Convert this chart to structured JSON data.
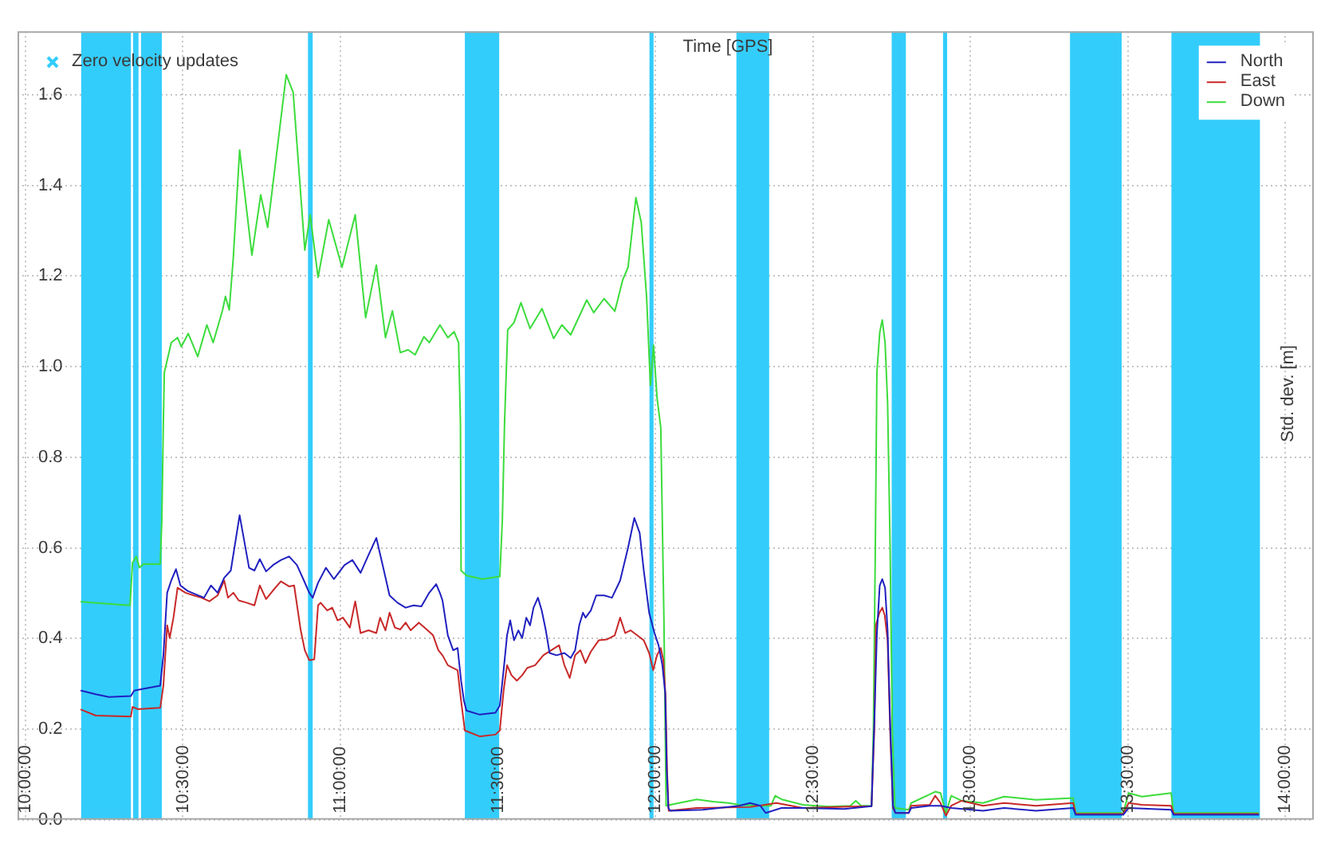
{
  "chart_data": {
    "type": "line",
    "xlabel": "Time [GPS]",
    "ylabel": "Std. dev. [m]",
    "series": [
      {
        "name": "North",
        "color": "#2020c0",
        "x": [
          10.177,
          10.223,
          10.265,
          10.335,
          10.345,
          10.374,
          10.428,
          10.438,
          10.45,
          10.463,
          10.478,
          10.492,
          10.515,
          10.542,
          10.567,
          10.589,
          10.61,
          10.631,
          10.652,
          10.68,
          10.71,
          10.727,
          10.744,
          10.764,
          10.786,
          10.811,
          10.837,
          10.862,
          10.884,
          10.901,
          10.912,
          10.929,
          10.954,
          10.979,
          11.013,
          11.038,
          11.064,
          11.089,
          11.114,
          11.136,
          11.156,
          11.181,
          11.207,
          11.232,
          11.257,
          11.282,
          11.304,
          11.316,
          11.324,
          11.341,
          11.358,
          11.372,
          11.383,
          11.392,
          11.4,
          11.442,
          11.492,
          11.506,
          11.518,
          11.529,
          11.539,
          11.551,
          11.565,
          11.577,
          11.59,
          11.602,
          11.613,
          11.627,
          11.639,
          11.652,
          11.664,
          11.686,
          11.711,
          11.731,
          11.745,
          11.758,
          11.77,
          11.778,
          11.795,
          11.812,
          11.837,
          11.862,
          11.888,
          11.913,
          11.933,
          11.95,
          11.963,
          11.98,
          11.997,
          12.01,
          12.022,
          12.031,
          12.036,
          12.041,
          12.047,
          12.15,
          12.266,
          12.3,
          12.333,
          12.35,
          12.4,
          12.468,
          12.6,
          12.686,
          12.695,
          12.703,
          12.712,
          12.72,
          12.729,
          12.737,
          12.745,
          12.754,
          12.762,
          12.804,
          12.812,
          12.871,
          12.905,
          12.939,
          13.04,
          13.107,
          13.208,
          13.326,
          13.334,
          13.485,
          13.502,
          13.637,
          13.645,
          13.914
        ],
        "values": [
          0.285,
          0.277,
          0.271,
          0.273,
          0.285,
          0.289,
          0.296,
          0.363,
          0.501,
          0.528,
          0.553,
          0.517,
          0.505,
          0.497,
          0.49,
          0.517,
          0.501,
          0.534,
          0.55,
          0.672,
          0.556,
          0.55,
          0.575,
          0.548,
          0.562,
          0.573,
          0.581,
          0.562,
          0.528,
          0.501,
          0.49,
          0.523,
          0.556,
          0.531,
          0.562,
          0.573,
          0.545,
          0.584,
          0.622,
          0.556,
          0.495,
          0.479,
          0.468,
          0.473,
          0.471,
          0.501,
          0.52,
          0.5,
          0.484,
          0.407,
          0.374,
          0.379,
          0.307,
          0.263,
          0.241,
          0.232,
          0.236,
          0.252,
          0.33,
          0.407,
          0.44,
          0.396,
          0.418,
          0.401,
          0.446,
          0.429,
          0.468,
          0.49,
          0.462,
          0.418,
          0.368,
          0.363,
          0.368,
          0.357,
          0.374,
          0.429,
          0.457,
          0.446,
          0.462,
          0.495,
          0.495,
          0.49,
          0.528,
          0.6,
          0.666,
          0.633,
          0.55,
          0.457,
          0.412,
          0.385,
          0.341,
          0.28,
          0.109,
          0.026,
          0.02,
          0.022,
          0.031,
          0.037,
          0.031,
          0.015,
          0.026,
          0.026,
          0.024,
          0.03,
          0.22,
          0.41,
          0.517,
          0.531,
          0.512,
          0.418,
          0.219,
          0.031,
          0.015,
          0.015,
          0.026,
          0.031,
          0.031,
          0.026,
          0.02,
          0.026,
          0.02,
          0.026,
          0.011,
          0.011,
          0.026,
          0.022,
          0.011,
          0.011
        ]
      },
      {
        "name": "East",
        "color": "#c82828",
        "x": [
          10.177,
          10.223,
          10.335,
          10.34,
          10.357,
          10.428,
          10.438,
          10.45,
          10.458,
          10.47,
          10.483,
          10.508,
          10.534,
          10.559,
          10.584,
          10.61,
          10.631,
          10.643,
          10.66,
          10.677,
          10.702,
          10.727,
          10.744,
          10.764,
          10.786,
          10.811,
          10.837,
          10.853,
          10.874,
          10.887,
          10.901,
          10.917,
          10.929,
          10.937,
          10.958,
          10.974,
          10.991,
          11.008,
          11.03,
          11.047,
          11.064,
          11.089,
          11.114,
          11.126,
          11.143,
          11.156,
          11.173,
          11.19,
          11.207,
          11.223,
          11.249,
          11.274,
          11.294,
          11.311,
          11.324,
          11.341,
          11.358,
          11.372,
          11.383,
          11.395,
          11.442,
          11.492,
          11.506,
          11.518,
          11.529,
          11.543,
          11.56,
          11.577,
          11.593,
          11.618,
          11.644,
          11.669,
          11.694,
          11.711,
          11.728,
          11.745,
          11.762,
          11.778,
          11.795,
          11.82,
          11.846,
          11.871,
          11.888,
          11.904,
          11.921,
          11.946,
          11.963,
          11.98,
          11.993,
          12.005,
          12.017,
          12.025,
          12.032,
          12.037,
          12.042,
          12.131,
          12.3,
          12.384,
          12.468,
          12.619,
          12.686,
          12.695,
          12.7,
          12.711,
          12.72,
          12.728,
          12.737,
          12.745,
          12.754,
          12.762,
          12.804,
          12.812,
          12.871,
          12.888,
          12.905,
          12.922,
          12.939,
          12.972,
          13.04,
          13.107,
          13.208,
          13.326,
          13.334,
          13.485,
          13.502,
          13.544,
          13.637,
          13.645,
          13.914
        ],
        "values": [
          0.243,
          0.23,
          0.228,
          0.249,
          0.244,
          0.247,
          0.296,
          0.429,
          0.401,
          0.446,
          0.512,
          0.501,
          0.495,
          0.49,
          0.482,
          0.495,
          0.528,
          0.49,
          0.501,
          0.484,
          0.479,
          0.473,
          0.517,
          0.487,
          0.506,
          0.526,
          0.515,
          0.517,
          0.418,
          0.374,
          0.352,
          0.354,
          0.473,
          0.479,
          0.462,
          0.468,
          0.44,
          0.446,
          0.424,
          0.482,
          0.412,
          0.418,
          0.412,
          0.446,
          0.418,
          0.457,
          0.424,
          0.42,
          0.435,
          0.418,
          0.435,
          0.42,
          0.407,
          0.374,
          0.363,
          0.341,
          0.335,
          0.33,
          0.263,
          0.197,
          0.184,
          0.188,
          0.197,
          0.285,
          0.341,
          0.319,
          0.307,
          0.319,
          0.335,
          0.341,
          0.363,
          0.374,
          0.385,
          0.341,
          0.313,
          0.363,
          0.374,
          0.346,
          0.371,
          0.396,
          0.398,
          0.407,
          0.446,
          0.412,
          0.418,
          0.405,
          0.396,
          0.368,
          0.33,
          0.363,
          0.379,
          0.352,
          0.274,
          0.109,
          0.02,
          0.026,
          0.028,
          0.037,
          0.026,
          0.029,
          0.03,
          0.2,
          0.43,
          0.457,
          0.468,
          0.451,
          0.396,
          0.197,
          0.026,
          0.015,
          0.015,
          0.031,
          0.033,
          0.053,
          0.037,
          0.009,
          0.031,
          0.042,
          0.031,
          0.037,
          0.031,
          0.037,
          0.013,
          0.013,
          0.037,
          0.033,
          0.031,
          0.013,
          0.013
        ]
      },
      {
        "name": "Down",
        "color": "#3cdc3c",
        "x": [
          10.177,
          10.332,
          10.34,
          10.352,
          10.362,
          10.374,
          10.428,
          10.433,
          10.438,
          10.441,
          10.463,
          10.483,
          10.495,
          10.517,
          10.547,
          10.576,
          10.596,
          10.626,
          10.635,
          10.647,
          10.66,
          10.68,
          10.719,
          10.747,
          10.769,
          10.828,
          10.85,
          10.887,
          10.904,
          10.929,
          10.963,
          11.005,
          11.047,
          11.08,
          11.114,
          11.143,
          11.165,
          11.19,
          11.215,
          11.237,
          11.265,
          11.282,
          11.316,
          11.341,
          11.361,
          11.375,
          11.381,
          11.383,
          11.4,
          11.45,
          11.506,
          11.514,
          11.521,
          11.531,
          11.551,
          11.573,
          11.602,
          11.64,
          11.677,
          11.703,
          11.731,
          11.782,
          11.804,
          11.837,
          11.871,
          11.896,
          11.913,
          11.938,
          11.955,
          11.972,
          11.984,
          11.994,
          12.005,
          12.017,
          12.027,
          12.034,
          12.047,
          12.097,
          12.131,
          12.182,
          12.232,
          12.266,
          12.333,
          12.367,
          12.38,
          12.401,
          12.468,
          12.552,
          12.619,
          12.636,
          12.653,
          12.686,
          12.692,
          12.698,
          12.703,
          12.712,
          12.72,
          12.729,
          12.737,
          12.745,
          12.752,
          12.76,
          12.804,
          12.812,
          12.871,
          12.888,
          12.905,
          12.922,
          12.939,
          12.972,
          13.04,
          13.107,
          13.208,
          13.326,
          13.334,
          13.485,
          13.502,
          13.544,
          13.637,
          13.645,
          13.914
        ],
        "values": [
          0.481,
          0.473,
          0.567,
          0.581,
          0.556,
          0.564,
          0.564,
          0.661,
          0.882,
          0.987,
          1.053,
          1.064,
          1.044,
          1.073,
          1.022,
          1.092,
          1.053,
          1.125,
          1.155,
          1.125,
          1.241,
          1.478,
          1.246,
          1.379,
          1.307,
          1.644,
          1.605,
          1.257,
          1.335,
          1.197,
          1.324,
          1.219,
          1.335,
          1.108,
          1.224,
          1.064,
          1.123,
          1.031,
          1.037,
          1.026,
          1.066,
          1.053,
          1.092,
          1.064,
          1.077,
          1.053,
          0.876,
          0.55,
          0.539,
          0.531,
          0.537,
          0.661,
          0.876,
          1.081,
          1.097,
          1.141,
          1.084,
          1.128,
          1.062,
          1.092,
          1.07,
          1.147,
          1.119,
          1.15,
          1.122,
          1.191,
          1.219,
          1.373,
          1.318,
          1.153,
          0.959,
          1.047,
          0.932,
          0.865,
          0.44,
          0.031,
          0.033,
          0.04,
          0.045,
          0.04,
          0.037,
          0.033,
          0.031,
          0.031,
          0.053,
          0.045,
          0.033,
          0.029,
          0.031,
          0.042,
          0.031,
          0.031,
          0.2,
          0.6,
          0.987,
          1.075,
          1.103,
          1.053,
          0.92,
          0.6,
          0.2,
          0.026,
          0.022,
          0.037,
          0.056,
          0.062,
          0.059,
          0.015,
          0.053,
          0.042,
          0.037,
          0.051,
          0.044,
          0.048,
          0.015,
          0.015,
          0.059,
          0.051,
          0.059,
          0.015,
          0.015
        ]
      }
    ],
    "xlim": [
      9.975,
      14.09
    ],
    "xticks": [
      {
        "value": 10,
        "label": "10:00:00"
      },
      {
        "value": 10.5,
        "label": "10:30:00"
      },
      {
        "value": 11,
        "label": "11:00:00"
      },
      {
        "value": 11.5,
        "label": "11:30:00"
      },
      {
        "value": 12,
        "label": "12:00:00"
      },
      {
        "value": 12.5,
        "label": "12:30:00"
      },
      {
        "value": 13,
        "label": "13:00:00"
      },
      {
        "value": 13.5,
        "label": "13:30:00"
      },
      {
        "value": 14,
        "label": "14:00:00"
      }
    ],
    "ylim": [
      0,
      1.74
    ],
    "yticks": [
      {
        "value": 0,
        "label": "0.0"
      },
      0.2,
      0.4,
      0.6,
      0.8,
      {
        "value": 1,
        "label": "1.0"
      },
      1.2,
      1.4,
      1.6
    ],
    "bands": [
      {
        "axis": "x",
        "from": 10.177,
        "to": 10.335,
        "label": "Zero velocity updates",
        "color": "#33cdfc"
      },
      {
        "axis": "x",
        "from": 10.342,
        "to": 10.359,
        "color": "#33cdfc"
      },
      {
        "axis": "x",
        "from": 10.367,
        "to": 10.433,
        "color": "#33cdfc"
      },
      {
        "axis": "x",
        "from": 10.897,
        "to": 10.912,
        "color": "#33cdfc"
      },
      {
        "axis": "x",
        "from": 11.395,
        "to": 11.504,
        "color": "#33cdfc"
      },
      {
        "axis": "x",
        "from": 11.981,
        "to": 11.994,
        "color": "#33cdfc"
      },
      {
        "axis": "x",
        "from": 12.257,
        "to": 12.361,
        "color": "#33cdfc"
      },
      {
        "axis": "x",
        "from": 12.75,
        "to": 12.795,
        "color": "#33cdfc"
      },
      {
        "axis": "x",
        "from": 12.913,
        "to": 12.926,
        "color": "#33cdfc"
      },
      {
        "axis": "x",
        "from": 13.316,
        "to": 13.48,
        "color": "#33cdfc"
      },
      {
        "axis": "x",
        "from": 13.638,
        "to": 13.919,
        "color": "#33cdfc"
      }
    ],
    "grid": true,
    "legend": "top right",
    "marker": "none",
    "line_style": "solid"
  }
}
